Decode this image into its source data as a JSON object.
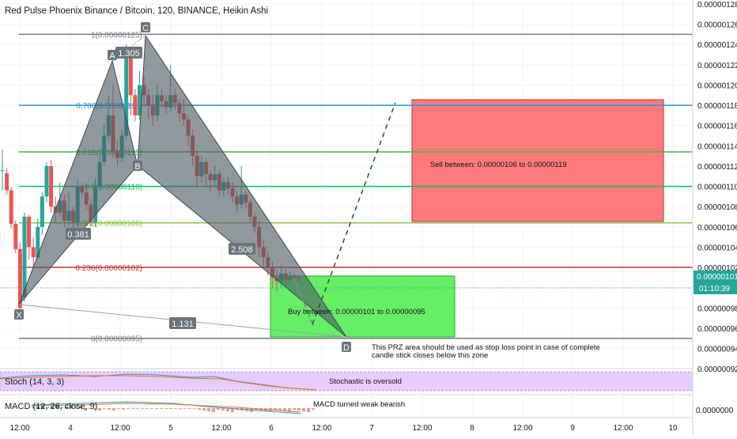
{
  "header": {
    "title": "Red Pulse Phoenix Binance / Bitcoin, 120, BINANCE, Heikin Ashi"
  },
  "price_axis": {
    "ticks": [
      "0.00000128",
      "0.00000126",
      "0.00000124",
      "0.00000122",
      "0.00000120",
      "0.00000118",
      "0.00000116",
      "0.00000114",
      "0.00000112",
      "0.00000110",
      "0.00000108",
      "0.00000106",
      "0.00000104",
      "0.00000102",
      "0.00000100",
      "0.00000098",
      "0.00000096",
      "0.00000094",
      "0.00000092"
    ],
    "current_price": "0.00000101",
    "countdown": "01:10:39",
    "stoch_tick": "0.0000000"
  },
  "time_axis": {
    "ticks": [
      "12:00",
      "4",
      "12:00",
      "5",
      "12:00",
      "6",
      "12:00",
      "7",
      "12:00",
      "8",
      "12:00",
      "9",
      "12:00",
      "10"
    ]
  },
  "fib_levels": [
    {
      "label": "1(0.00000125)",
      "value": 1.25e-06,
      "color": "#787b86"
    },
    {
      "label": "0.786(0.00000118)",
      "value": 1.18e-06,
      "color": "#2196f3"
    },
    {
      "label": "0.618(0.00000113)",
      "value": 1.134e-06,
      "color": "#4caf50"
    },
    {
      "label": "0.5(0.00000110)",
      "value": 1.1e-06,
      "color": "#00c853"
    },
    {
      "label": "0.382(0.00000106)",
      "value": 1.064e-06,
      "color": "#8bc34a"
    },
    {
      "label": "0.236(0.00000102)",
      "value": 1.02e-06,
      "color": "#d32f2f"
    },
    {
      "label": "0(0.00000095)",
      "value": 9.5e-07,
      "color": "#787b86"
    }
  ],
  "pattern": {
    "points": [
      "X",
      "A",
      "B",
      "C",
      "D"
    ],
    "ratios": [
      "1.305",
      "0.381",
      "2.508",
      "1.131"
    ]
  },
  "annotations": {
    "sell_text": "Sell between: 0.00000106 to 0.00000119",
    "buy_text": "Buy between: 0.00000101 to 0.00000095",
    "stop_text_1": "This PRZ area should be used as stop loss point in case of complete",
    "stop_text_2": "candle stick closes below this zone"
  },
  "indicators": {
    "stoch_label": "Stoch (14, 3, 3)",
    "stoch_note": "Stochastic is oversold",
    "macd_label": "MACD (12, 26, close, 9)",
    "macd_note": "MACD turned weak bearish"
  },
  "colors": {
    "up": "#26a69a",
    "down": "#ef5350",
    "sell_zone": "#ff7b7b",
    "buy_zone": "#66ee66",
    "pattern_fill": "#4a5a63"
  },
  "chart_data": {
    "type": "candlestick",
    "title": "Red Pulse Phoenix Binance / Bitcoin, 120, BINANCE, Heikin Ashi",
    "xlabel": "",
    "ylabel": "",
    "ylim": [
      9.2e-07,
      1.28e-06
    ],
    "x_ticks": [
      "12:00",
      "4",
      "12:00",
      "5",
      "12:00",
      "6",
      "12:00",
      "7",
      "12:00",
      "8",
      "12:00",
      "9",
      "12:00",
      "10"
    ],
    "candles": [
      [
        1.116,
        1.116,
        1.136,
        1.096
      ],
      [
        1.113,
        1.096,
        1.118,
        1.092
      ],
      [
        1.096,
        1.063,
        1.099,
        1.058
      ],
      [
        1.063,
        1.038,
        1.066,
        1.034
      ],
      [
        1.038,
        0.98,
        1.044,
        0.978
      ],
      [
        0.99,
        1.07,
        1.074,
        0.986
      ],
      [
        1.07,
        1.04,
        1.072,
        1.028
      ],
      [
        1.04,
        1.03,
        1.05,
        1.02
      ],
      [
        1.03,
        1.06,
        1.068,
        1.028
      ],
      [
        1.06,
        1.09,
        1.094,
        1.052
      ],
      [
        1.09,
        1.12,
        1.124,
        1.084
      ],
      [
        1.12,
        1.08,
        1.126,
        1.074
      ],
      [
        1.08,
        1.074,
        1.09,
        1.064
      ],
      [
        1.074,
        1.086,
        1.104,
        1.07
      ],
      [
        1.086,
        1.066,
        1.092,
        1.06
      ],
      [
        1.066,
        1.076,
        1.094,
        1.062
      ],
      [
        1.076,
        1.064,
        1.08,
        1.058
      ],
      [
        1.064,
        1.1,
        1.106,
        1.06
      ],
      [
        1.1,
        1.094,
        1.104,
        1.088
      ],
      [
        1.094,
        1.082,
        1.1,
        1.076
      ],
      [
        1.082,
        1.064,
        1.088,
        1.06
      ],
      [
        1.064,
        1.1,
        1.108,
        1.06
      ],
      [
        1.1,
        1.124,
        1.13,
        1.096
      ],
      [
        1.124,
        1.15,
        1.162,
        1.12
      ],
      [
        1.15,
        1.17,
        1.19,
        1.144
      ],
      [
        1.17,
        1.135,
        1.2,
        1.128
      ],
      [
        1.135,
        1.128,
        1.145,
        1.12
      ],
      [
        1.128,
        1.15,
        1.156,
        1.124
      ],
      [
        1.15,
        1.23,
        1.24,
        1.146
      ],
      [
        1.23,
        1.19,
        1.236,
        1.17
      ],
      [
        1.19,
        1.17,
        1.196,
        1.164
      ],
      [
        1.17,
        1.2,
        1.214,
        1.166
      ],
      [
        1.2,
        1.19,
        1.21,
        1.18
      ],
      [
        1.19,
        1.18,
        1.196,
        1.166
      ],
      [
        1.18,
        1.17,
        1.19,
        1.16
      ],
      [
        1.17,
        1.19,
        1.2,
        1.164
      ],
      [
        1.19,
        1.184,
        1.196,
        1.178
      ],
      [
        1.184,
        1.178,
        1.19,
        1.172
      ],
      [
        1.178,
        1.19,
        1.22,
        1.174
      ],
      [
        1.19,
        1.182,
        1.196,
        1.176
      ],
      [
        1.182,
        1.172,
        1.186,
        1.164
      ],
      [
        1.172,
        1.166,
        1.186,
        1.16
      ],
      [
        1.166,
        1.15,
        1.17,
        1.14
      ],
      [
        1.15,
        1.13,
        1.156,
        1.12
      ],
      [
        1.13,
        1.11,
        1.136,
        1.1
      ],
      [
        1.11,
        1.124,
        1.13,
        1.104
      ],
      [
        1.124,
        1.112,
        1.128,
        1.1
      ],
      [
        1.112,
        1.106,
        1.116,
        1.096
      ],
      [
        1.106,
        1.112,
        1.12,
        1.1
      ],
      [
        1.112,
        1.096,
        1.116,
        1.09
      ],
      [
        1.096,
        1.104,
        1.108,
        1.09
      ],
      [
        1.104,
        1.098,
        1.11,
        1.092
      ],
      [
        1.098,
        1.09,
        1.104,
        1.084
      ],
      [
        1.09,
        1.082,
        1.096,
        1.074
      ],
      [
        1.082,
        1.092,
        1.12,
        1.078
      ],
      [
        1.092,
        1.084,
        1.096,
        1.078
      ],
      [
        1.084,
        1.07,
        1.088,
        1.064
      ],
      [
        1.07,
        1.06,
        1.074,
        1.054
      ],
      [
        1.06,
        1.04,
        1.066,
        1.03
      ],
      [
        1.04,
        1.03,
        1.048,
        1.02
      ],
      [
        1.03,
        1.02,
        1.036,
        1.012
      ],
      [
        1.02,
        1.01,
        1.026,
        1.0
      ],
      [
        1.01,
        1.006,
        1.018,
        0.996
      ],
      [
        1.006,
        1.014,
        1.022,
        1.0
      ],
      [
        1.014,
        1.008,
        1.018,
        1.0
      ],
      [
        1.008,
        1.012,
        1.016,
        1.004
      ],
      [
        1.012,
        1.01,
        1.014,
        1.006
      ],
      [
        1.01,
        1.009,
        1.012,
        1.006
      ]
    ]
  }
}
